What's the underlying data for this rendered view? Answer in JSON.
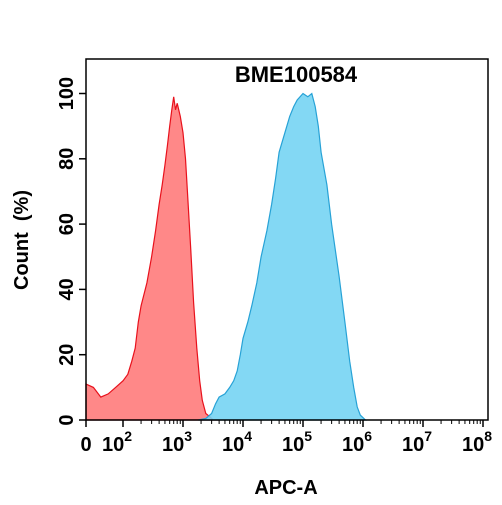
{
  "chart_data": {
    "type": "area",
    "title": "BME100584",
    "xlabel": "APC-A",
    "ylabel": "Count  (%)",
    "x_scale": "biexponential",
    "x_ticks": [
      {
        "value": 0,
        "base": "0",
        "exp": ""
      },
      {
        "value": 100,
        "base": "10",
        "exp": "2"
      },
      {
        "value": 1000,
        "base": "10",
        "exp": "3"
      },
      {
        "value": 10000,
        "base": "10",
        "exp": "4"
      },
      {
        "value": 100000,
        "base": "10",
        "exp": "5"
      },
      {
        "value": 1000000,
        "base": "10",
        "exp": "6"
      },
      {
        "value": 10000000,
        "base": "10",
        "exp": "7"
      },
      {
        "value": 100000000,
        "base": "10",
        "exp": "8"
      }
    ],
    "y_ticks": [
      "0",
      "20",
      "40",
      "60",
      "80",
      "100"
    ],
    "ylim": [
      0,
      100
    ],
    "grid": false,
    "series": [
      {
        "color": "#ff7b7b",
        "stroke": "#e8111c",
        "points": [
          [
            0,
            11
          ],
          [
            20,
            10
          ],
          [
            40,
            7
          ],
          [
            60,
            8
          ],
          [
            80,
            10
          ],
          [
            100,
            12
          ],
          [
            120,
            14
          ],
          [
            140,
            18
          ],
          [
            160,
            22
          ],
          [
            180,
            30
          ],
          [
            200,
            35
          ],
          [
            250,
            42
          ],
          [
            300,
            50
          ],
          [
            350,
            58
          ],
          [
            400,
            66
          ],
          [
            450,
            72
          ],
          [
            500,
            78
          ],
          [
            550,
            84
          ],
          [
            600,
            90
          ],
          [
            650,
            95
          ],
          [
            700,
            99
          ],
          [
            750,
            95
          ],
          [
            800,
            97
          ],
          [
            900,
            93
          ],
          [
            1000,
            88
          ],
          [
            1100,
            80
          ],
          [
            1200,
            68
          ],
          [
            1350,
            52
          ],
          [
            1500,
            36
          ],
          [
            1700,
            22
          ],
          [
            1900,
            12
          ],
          [
            2100,
            6
          ],
          [
            2400,
            2
          ],
          [
            2800,
            1
          ],
          [
            3200,
            0
          ],
          [
            4000,
            0
          ]
        ]
      },
      {
        "color": "#75d4f3",
        "stroke": "#27a2d6",
        "points": [
          [
            1800,
            0
          ],
          [
            2400,
            0.5
          ],
          [
            3000,
            2
          ],
          [
            3500,
            5
          ],
          [
            4000,
            7
          ],
          [
            5000,
            8
          ],
          [
            6000,
            10
          ],
          [
            7000,
            12
          ],
          [
            8000,
            15
          ],
          [
            9000,
            20
          ],
          [
            10000,
            25
          ],
          [
            12000,
            30
          ],
          [
            14000,
            35
          ],
          [
            17000,
            42
          ],
          [
            20000,
            50
          ],
          [
            25000,
            58
          ],
          [
            30000,
            66
          ],
          [
            35000,
            74
          ],
          [
            40000,
            82
          ],
          [
            50000,
            88
          ],
          [
            60000,
            93
          ],
          [
            70000,
            96
          ],
          [
            80000,
            98
          ],
          [
            100000,
            100
          ],
          [
            120000,
            99
          ],
          [
            140000,
            100
          ],
          [
            160000,
            96
          ],
          [
            180000,
            90
          ],
          [
            200000,
            82
          ],
          [
            250000,
            72
          ],
          [
            300000,
            60
          ],
          [
            400000,
            44
          ],
          [
            500000,
            30
          ],
          [
            600000,
            18
          ],
          [
            700000,
            10
          ],
          [
            800000,
            4
          ],
          [
            900000,
            1.5
          ],
          [
            1100000,
            0
          ]
        ]
      }
    ]
  }
}
